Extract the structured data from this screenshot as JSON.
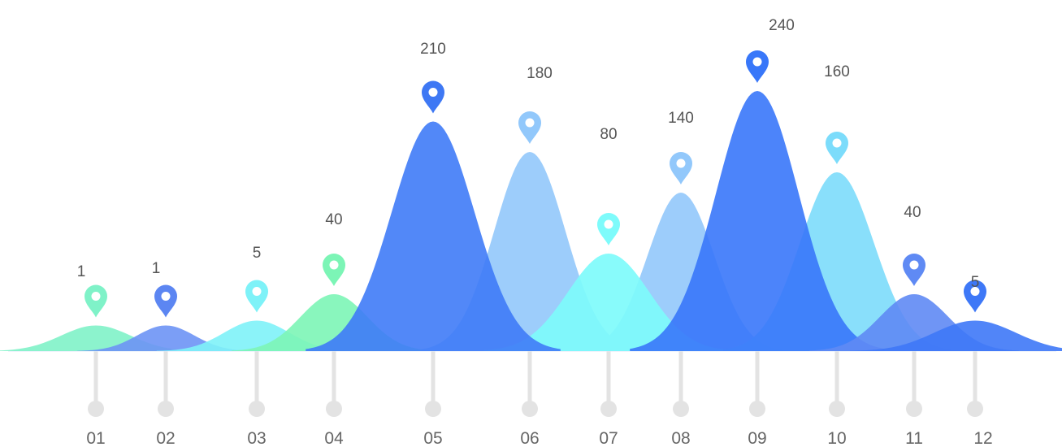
{
  "chart_data": {
    "type": "area",
    "title": "",
    "xlabel": "",
    "ylabel": "",
    "categories": [
      "01",
      "02",
      "03",
      "04",
      "05",
      "06",
      "07",
      "08",
      "09",
      "10",
      "11",
      "12"
    ],
    "values": [
      1,
      1,
      5,
      40,
      210,
      180,
      80,
      140,
      240,
      160,
      40,
      5
    ],
    "colors": [
      "#7FF2C8",
      "#6D93F5",
      "#7EF2F8",
      "#7CF5B6",
      "#3F7BF7",
      "#92C8FB",
      "#7EFBFB",
      "#92C8FB",
      "#3877F9",
      "#7CDCFB",
      "#5F8AF4",
      "#3E78F7"
    ],
    "pin_colors": [
      "#7FF2C8",
      "#5C86F2",
      "#7EF2F8",
      "#7CF5B6",
      "#3E78F4",
      "#92C8FB",
      "#7EFBFB",
      "#92C8FB",
      "#3877F9",
      "#7CDCFB",
      "#5F8AF4",
      "#3E78F7"
    ],
    "stem_color": "#E3E3E3",
    "marker_icon": "map-pin-icon",
    "grid": false,
    "legend": "none"
  }
}
